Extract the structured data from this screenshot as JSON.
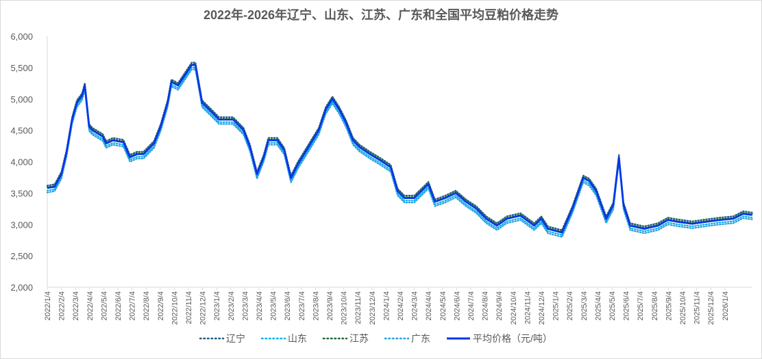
{
  "chart_data": {
    "type": "line",
    "title": "2022年-2026年辽宁、山东、江苏、广东和全国平均豆粕价格走势",
    "xlabel": "",
    "ylabel": "",
    "ylim": [
      2000,
      6000
    ],
    "yticks": [
      "2,000",
      "2,500",
      "3,000",
      "3,500",
      "4,000",
      "4,500",
      "5,000",
      "5,500",
      "6,000"
    ],
    "ytick_values": [
      2000,
      2500,
      3000,
      3500,
      4000,
      4500,
      5000,
      5500,
      6000
    ],
    "xticks": [
      "2022/1/4",
      "2022/2/4",
      "2022/3/4",
      "2022/4/4",
      "2022/5/4",
      "2022/6/4",
      "2022/7/4",
      "2022/8/4",
      "2022/9/4",
      "2022/10/4",
      "2022/11/4",
      "2022/12/4",
      "2023/1/4",
      "2023/2/4",
      "2023/3/4",
      "2023/4/4",
      "2023/5/4",
      "2023/6/4",
      "2023/7/4",
      "2023/8/4",
      "2023/9/4",
      "2023/10/4",
      "2023/11/4",
      "2023/12/4",
      "2024/1/4",
      "2024/2/4",
      "2024/3/4",
      "2024/4/4",
      "2024/5/4",
      "2024/6/4",
      "2024/7/4",
      "2024/8/4",
      "2024/9/4",
      "2024/10/4",
      "2024/11/4",
      "2024/12/4",
      "2025/1/4",
      "2025/2/4",
      "2025/3/4",
      "2025/4/4",
      "2025/5/4",
      "2025/6/4",
      "2025/7/4",
      "2025/8/4",
      "2025/9/4",
      "2025/10/4",
      "2025/11/4",
      "2025/12/4",
      "2026/1/4"
    ],
    "grid": false,
    "legend_position": "bottom",
    "x": [
      "2022-01-04",
      "2022-01-20",
      "2022-02-04",
      "2022-02-15",
      "2022-02-27",
      "2022-03-07",
      "2022-03-18",
      "2022-03-24",
      "2022-04-03",
      "2022-04-10",
      "2022-05-02",
      "2022-05-09",
      "2022-05-24",
      "2022-06-16",
      "2022-06-30",
      "2022-07-15",
      "2022-07-29",
      "2022-08-21",
      "2022-09-05",
      "2022-09-20",
      "2022-09-28",
      "2022-10-12",
      "2022-10-27",
      "2022-11-11",
      "2022-11-19",
      "2022-12-03",
      "2022-12-25",
      "2023-01-09",
      "2023-02-09",
      "2023-03-01",
      "2023-03-15",
      "2023-03-30",
      "2023-04-14",
      "2023-04-24",
      "2023-05-13",
      "2023-05-28",
      "2023-06-12",
      "2023-06-27",
      "2023-07-19",
      "2023-08-11",
      "2023-08-26",
      "2023-09-10",
      "2023-09-25",
      "2023-10-09",
      "2023-10-24",
      "2023-11-08",
      "2023-11-30",
      "2023-12-22",
      "2024-01-14",
      "2024-01-29",
      "2024-02-13",
      "2024-03-04",
      "2024-04-04",
      "2024-04-18",
      "2024-05-10",
      "2024-06-02",
      "2024-06-24",
      "2024-07-16",
      "2024-08-07",
      "2024-08-30",
      "2024-09-21",
      "2024-10-20",
      "2024-11-19",
      "2024-12-04",
      "2024-12-18",
      "2025-01-18",
      "2025-02-10",
      "2025-03-03",
      "2025-03-16",
      "2025-03-31",
      "2025-04-22",
      "2025-05-07",
      "2025-05-19",
      "2025-05-29",
      "2025-06-13",
      "2025-07-13",
      "2025-08-12",
      "2025-09-03",
      "2025-09-25",
      "2025-10-25",
      "2025-11-23",
      "2025-12-23",
      "2026-01-22",
      "2026-02-13",
      "2026-03-02"
    ],
    "series": [
      {
        "name": "辽宁",
        "color": "#1f5f7a",
        "style": "dotted",
        "values": [
          3620,
          3640,
          3840,
          4190,
          4710,
          4980,
          5090,
          5255,
          4600,
          4540,
          4440,
          4330,
          4380,
          4350,
          4110,
          4160,
          4160,
          4330,
          4600,
          4980,
          5310,
          5255,
          5420,
          5580,
          5580,
          4980,
          4820,
          4710,
          4710,
          4540,
          4270,
          3840,
          4110,
          4380,
          4380,
          4220,
          3780,
          4000,
          4270,
          4540,
          4870,
          5040,
          4870,
          4660,
          4380,
          4270,
          4160,
          4060,
          3950,
          3570,
          3460,
          3460,
          3680,
          3400,
          3460,
          3540,
          3400,
          3290,
          3130,
          3020,
          3130,
          3180,
          3020,
          3130,
          2970,
          2910,
          3290,
          3780,
          3730,
          3570,
          3130,
          3350,
          4110,
          3350,
          3020,
          2970,
          3020,
          3110,
          3080,
          3050,
          3080,
          3110,
          3130,
          3210,
          3190
        ]
      },
      {
        "name": "山东",
        "color": "#00b0f0",
        "style": "dotted",
        "values": [
          3540,
          3560,
          3760,
          4110,
          4630,
          4900,
          5010,
          5175,
          4520,
          4460,
          4360,
          4250,
          4300,
          4270,
          4030,
          4080,
          4080,
          4250,
          4520,
          4900,
          5230,
          5175,
          5340,
          5500,
          5500,
          4900,
          4740,
          4630,
          4630,
          4460,
          4190,
          3760,
          4030,
          4300,
          4300,
          4140,
          3700,
          3920,
          4190,
          4460,
          4790,
          4960,
          4790,
          4580,
          4300,
          4190,
          4080,
          3980,
          3870,
          3490,
          3380,
          3380,
          3600,
          3320,
          3380,
          3460,
          3320,
          3210,
          3050,
          2940,
          3050,
          3100,
          2940,
          3050,
          2890,
          2830,
          3210,
          3700,
          3650,
          3490,
          3050,
          3270,
          4030,
          3270,
          2940,
          2890,
          2940,
          3030,
          3000,
          2970,
          3000,
          3030,
          3050,
          3130,
          3110
        ]
      },
      {
        "name": "江苏",
        "color": "#1e6b30",
        "style": "dotted",
        "values": [
          3595,
          3615,
          3815,
          4165,
          4685,
          4955,
          5065,
          5230,
          4575,
          4515,
          4415,
          4305,
          4355,
          4325,
          4085,
          4135,
          4135,
          4305,
          4575,
          4955,
          5285,
          5230,
          5395,
          5555,
          5555,
          4955,
          4795,
          4685,
          4685,
          4515,
          4245,
          3815,
          4085,
          4355,
          4355,
          4195,
          3755,
          3975,
          4245,
          4515,
          4845,
          5015,
          4845,
          4635,
          4355,
          4245,
          4135,
          4035,
          3925,
          3545,
          3435,
          3435,
          3655,
          3375,
          3435,
          3515,
          3375,
          3265,
          3105,
          2995,
          3105,
          3155,
          2995,
          3105,
          2945,
          2885,
          3265,
          3755,
          3705,
          3545,
          3105,
          3325,
          4085,
          3325,
          2995,
          2945,
          2995,
          3085,
          3055,
          3025,
          3055,
          3085,
          3105,
          3185,
          3165
        ]
      },
      {
        "name": "广东",
        "color": "#2aa0d8",
        "style": "dotted",
        "values": [
          3510,
          3530,
          3730,
          4080,
          4600,
          4870,
          4980,
          5145,
          4490,
          4430,
          4330,
          4220,
          4270,
          4240,
          4000,
          4050,
          4050,
          4220,
          4490,
          4870,
          5200,
          5145,
          5310,
          5470,
          5470,
          4870,
          4710,
          4600,
          4600,
          4430,
          4160,
          3730,
          4000,
          4270,
          4270,
          4110,
          3670,
          3890,
          4160,
          4430,
          4760,
          4930,
          4760,
          4550,
          4270,
          4160,
          4050,
          3950,
          3840,
          3460,
          3350,
          3350,
          3570,
          3290,
          3350,
          3430,
          3290,
          3180,
          3020,
          2910,
          3020,
          3070,
          2910,
          3020,
          2860,
          2800,
          3180,
          3670,
          3620,
          3460,
          3020,
          3240,
          4000,
          3240,
          2910,
          2860,
          2910,
          3000,
          2970,
          2940,
          2970,
          3000,
          3020,
          3100,
          3080
        ]
      },
      {
        "name": "平均价格（元/吨）",
        "color": "#0a32f0",
        "style": "solid",
        "values": [
          3580,
          3600,
          3800,
          4150,
          4670,
          4940,
          5050,
          5215,
          4560,
          4500,
          4400,
          4290,
          4340,
          4310,
          4070,
          4120,
          4120,
          4290,
          4560,
          4940,
          5270,
          5215,
          5380,
          5540,
          5540,
          4940,
          4780,
          4670,
          4670,
          4500,
          4230,
          3800,
          4070,
          4340,
          4340,
          4180,
          3740,
          3960,
          4230,
          4500,
          4830,
          5000,
          4830,
          4620,
          4340,
          4230,
          4120,
          4020,
          3910,
          3530,
          3420,
          3420,
          3640,
          3360,
          3420,
          3500,
          3360,
          3250,
          3090,
          2980,
          3090,
          3140,
          2980,
          3090,
          2930,
          2870,
          3250,
          3740,
          3690,
          3530,
          3090,
          3310,
          4070,
          3310,
          2980,
          2930,
          2980,
          3070,
          3040,
          3010,
          3040,
          3070,
          3090,
          3170,
          3150
        ]
      }
    ]
  }
}
